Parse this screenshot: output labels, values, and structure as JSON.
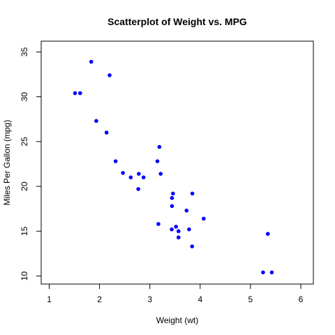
{
  "chart_data": {
    "type": "scatter",
    "title": "Scatterplot of Weight vs. MPG",
    "xlabel": "Weight (wt)",
    "ylabel": "Miles Per Gallon (mpg)",
    "xlim": [
      0.84,
      6.25
    ],
    "ylim": [
      9.1,
      36.2
    ],
    "xticks": [
      1,
      2,
      3,
      4,
      5,
      6
    ],
    "yticks": [
      10,
      15,
      20,
      25,
      30,
      35
    ],
    "grid": false,
    "point_color": "#0000ff",
    "series": [
      {
        "x": [
          1.513,
          1.615,
          1.835,
          1.935,
          2.14,
          2.2,
          2.32,
          2.465,
          2.62,
          2.77,
          2.78,
          2.875,
          3.15,
          3.17,
          3.19,
          3.215,
          3.435,
          3.44,
          3.44,
          3.46,
          3.52,
          3.57,
          3.57,
          3.73,
          3.78,
          3.84,
          3.845,
          4.07,
          5.25,
          5.345,
          5.424
        ],
        "y": [
          30.4,
          30.4,
          33.9,
          27.3,
          26.0,
          32.4,
          22.8,
          21.5,
          21.0,
          19.7,
          21.4,
          21.0,
          22.8,
          15.8,
          24.4,
          21.4,
          15.2,
          18.7,
          17.8,
          19.2,
          15.5,
          15.0,
          14.3,
          17.3,
          15.2,
          13.3,
          19.2,
          16.4,
          10.4,
          14.7,
          10.4
        ]
      }
    ]
  }
}
